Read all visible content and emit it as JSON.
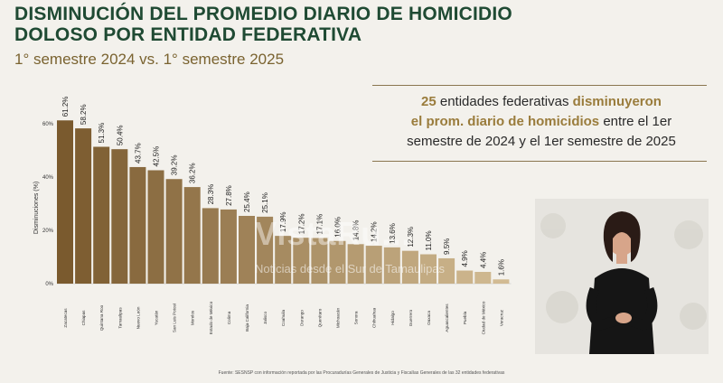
{
  "header": {
    "title_line1": "DISMINUCIÓN DEL PROMEDIO DIARIO DE HOMICIDIO",
    "title_line2": "DOLOSO POR ENTIDAD FEDERATIVA",
    "subtitle": "1° semestre 2024 vs. 1° semestre 2025"
  },
  "callout": {
    "count": "25",
    "part1": " entidades federativas ",
    "hl1": "disminuyeron",
    "hl2": "el prom. diario de homicidios",
    "part2": " entre el 1er",
    "line3": "semestre de 2024 y el 1er semestre de 2025"
  },
  "watermark": {
    "brand": "VistaRu...",
    "tagline": "Noticias desde el Sur de Tamaulipas"
  },
  "footer": "Fuente: SESNSP con información reportada por las Procuradurías Generales de Justicia y Fiscalías Generales de las 32 entidades federativas",
  "colors": {
    "title": "#1f4a33",
    "accent": "#9a7c3c",
    "bar_dark": "#7a5a2e",
    "bar_light": "#d2bb93"
  },
  "chart_data": {
    "type": "bar",
    "categories": [
      "Zacatecas",
      "Chiapas",
      "Quintana Roo",
      "Tamaulipas",
      "Nuevo León",
      "Yucatán",
      "San Luis Potosí",
      "Morelos",
      "Estado de México",
      "Colima",
      "Baja California",
      "Jalisco",
      "Coahuila",
      "Durango",
      "Querétaro",
      "Michoacán",
      "Sonora",
      "Chihuahua",
      "Hidalgo",
      "Guerrero",
      "Oaxaca",
      "Aguascalientes",
      "Puebla",
      "Ciudad de México",
      "Veracruz"
    ],
    "values": [
      61.2,
      58.2,
      51.3,
      50.4,
      43.7,
      42.5,
      39.2,
      36.2,
      28.3,
      27.8,
      25.4,
      25.1,
      17.9,
      17.2,
      17.1,
      16.0,
      14.8,
      14.2,
      13.6,
      12.3,
      11.0,
      9.5,
      4.9,
      4.4,
      1.6
    ],
    "labels": [
      "61.2%",
      "58.2%",
      "51.3%",
      "50.4%",
      "43.7%",
      "42.5%",
      "39.2%",
      "36.2%",
      "28.3%",
      "27.8%",
      "25.4%",
      "25.1%",
      "17.9%",
      "17.2%",
      "17.1%",
      "16.0%",
      "14.8%",
      "14.2%",
      "13.6%",
      "12.3%",
      "11.0%",
      "9.5%",
      "4.9%",
      "4.4%",
      "1.6%"
    ],
    "ylabel": "Disminuciones (%)",
    "yticks": [
      "0%",
      "20%",
      "40%",
      "60%"
    ],
    "ylim": [
      0,
      64
    ],
    "grid": false,
    "legend": "none"
  }
}
